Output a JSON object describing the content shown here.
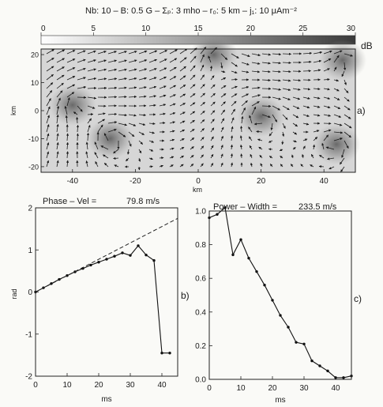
{
  "figure_title": "Nb: 10 – B: 0.5 G – Σₚ: 3 mho – r₀: 5 km – j₁: 10 μAm⁻²",
  "chart_data": [
    {
      "id": "a",
      "panel_label": "a)",
      "type": "heatmap",
      "colorbar": {
        "ticks": [
          "0",
          "5",
          "10",
          "15",
          "20",
          "25",
          "30"
        ],
        "unit": "dB",
        "range": [
          0,
          30
        ]
      },
      "xlabel": "km",
      "ylabel": "km",
      "xlim": [
        -50,
        50
      ],
      "ylim": [
        -22,
        22
      ],
      "xticks": [
        "-40",
        "-20",
        "0",
        "20",
        "40"
      ],
      "yticks": [
        "20",
        "10",
        "0",
        "-10",
        "-20"
      ],
      "vortices": [
        {
          "x": -40,
          "y": 2
        },
        {
          "x": -28,
          "y": -10
        },
        {
          "x": 20,
          "y": -2
        },
        {
          "x": 44,
          "y": -12
        },
        {
          "x": 5,
          "y": 20
        },
        {
          "x": 46,
          "y": 18
        }
      ]
    },
    {
      "id": "b",
      "panel_label": "b)",
      "type": "line",
      "title_left": "Phase – Vel =",
      "title_value": "79.8 m/s",
      "xlabel": "ms",
      "ylabel": "rad",
      "xlim": [
        0,
        45
      ],
      "ylim": [
        -2,
        2
      ],
      "xticks": [
        "0",
        "10",
        "20",
        "30",
        "40"
      ],
      "yticks": [
        "2",
        "1",
        "0",
        "-1",
        "-2"
      ],
      "series": [
        {
          "style": "solid-markers",
          "x": [
            0,
            2.5,
            5,
            7.5,
            10,
            12.5,
            15,
            17.5,
            20,
            22.5,
            25,
            27.5,
            30,
            32.5,
            35,
            37.5,
            40,
            42.5
          ],
          "y": [
            0,
            0.1,
            0.2,
            0.3,
            0.39,
            0.48,
            0.56,
            0.64,
            0.71,
            0.78,
            0.85,
            0.93,
            0.87,
            1.1,
            0.88,
            0.75,
            -1.45,
            -1.45
          ]
        },
        {
          "style": "dashed-fit",
          "x": [
            0,
            45
          ],
          "y": [
            0,
            1.75
          ]
        }
      ]
    },
    {
      "id": "c",
      "panel_label": "c)",
      "type": "line",
      "title_left": "Power – Width =",
      "title_value": "233.5 m/s",
      "xlabel": "ms",
      "ylabel": "",
      "xlim": [
        0,
        45
      ],
      "ylim": [
        0,
        1.0
      ],
      "xticks": [
        "0",
        "10",
        "20",
        "30",
        "40"
      ],
      "yticks": [
        "1.0",
        "0.8",
        "0.6",
        "0.4",
        "0.2",
        "0.0"
      ],
      "series": [
        {
          "style": "solid-markers",
          "x": [
            0,
            2.5,
            5,
            7.5,
            10,
            12.5,
            15,
            17.5,
            20,
            22.5,
            25,
            27.5,
            30,
            32.5,
            35,
            37.5,
            40,
            42.5,
            45
          ],
          "y": [
            0.96,
            0.98,
            1.02,
            0.74,
            0.83,
            0.72,
            0.64,
            0.56,
            0.47,
            0.38,
            0.31,
            0.22,
            0.21,
            0.11,
            0.08,
            0.05,
            0.01,
            0.01,
            0.02
          ]
        }
      ]
    }
  ]
}
